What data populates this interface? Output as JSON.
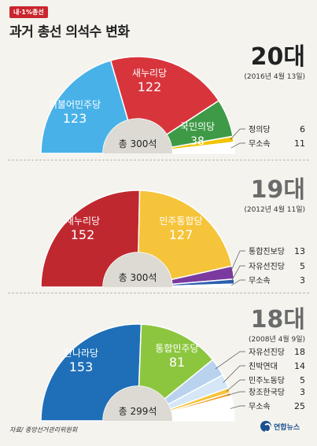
{
  "header": {
    "badge": "내·1%총선",
    "title": "과거 총선 의석수 변화"
  },
  "source": "자료/ 중앙선거관리위원회",
  "logo": {
    "text": "연합뉴스",
    "icon": "yonhap-logo-icon"
  },
  "chart_data": [
    {
      "type": "pie",
      "title": "20대",
      "subtitle": "(2016년 4월 13일)",
      "total_label": "총 300석",
      "total": 300,
      "slices": [
        {
          "name": "더불어민주당",
          "value": 123,
          "color": "#48b2e8"
        },
        {
          "name": "새누리당",
          "value": 122,
          "color": "#d8343c"
        },
        {
          "name": "국민의당",
          "value": 38,
          "color": "#3e9a46"
        },
        {
          "name": "정의당",
          "value": 6,
          "color": "#f2c400"
        },
        {
          "name": "무소속",
          "value": 11,
          "color": "#ffffff"
        }
      ]
    },
    {
      "type": "pie",
      "title": "19대",
      "subtitle": "(2012년 4월 11일)",
      "total_label": "총 300석",
      "total": 300,
      "slices": [
        {
          "name": "새누리당",
          "value": 152,
          "color": "#c0282f"
        },
        {
          "name": "민주통합당",
          "value": 127,
          "color": "#f5c43a"
        },
        {
          "name": "통합진보당",
          "value": 13,
          "color": "#7b3aa0"
        },
        {
          "name": "자유선진당",
          "value": 5,
          "color": "#2e5fb0"
        },
        {
          "name": "무소속",
          "value": 3,
          "color": "#ffffff"
        }
      ]
    },
    {
      "type": "pie",
      "title": "18대",
      "subtitle": "(2008년 4월 9일)",
      "total_label": "총 299석",
      "total": 299,
      "slices": [
        {
          "name": "한나라당",
          "value": 153,
          "color": "#1f6fb8"
        },
        {
          "name": "통합민주당",
          "value": 81,
          "color": "#8cc63f"
        },
        {
          "name": "자유선진당",
          "value": 18,
          "color": "#b9d3ee"
        },
        {
          "name": "친박연대",
          "value": 14,
          "color": "#d5e7f7"
        },
        {
          "name": "민주노동당",
          "value": 5,
          "color": "#f5c43a"
        },
        {
          "name": "창조한국당",
          "value": 3,
          "color": "#f29a2e"
        },
        {
          "name": "무소속",
          "value": 25,
          "color": "#ffffff"
        }
      ]
    }
  ]
}
